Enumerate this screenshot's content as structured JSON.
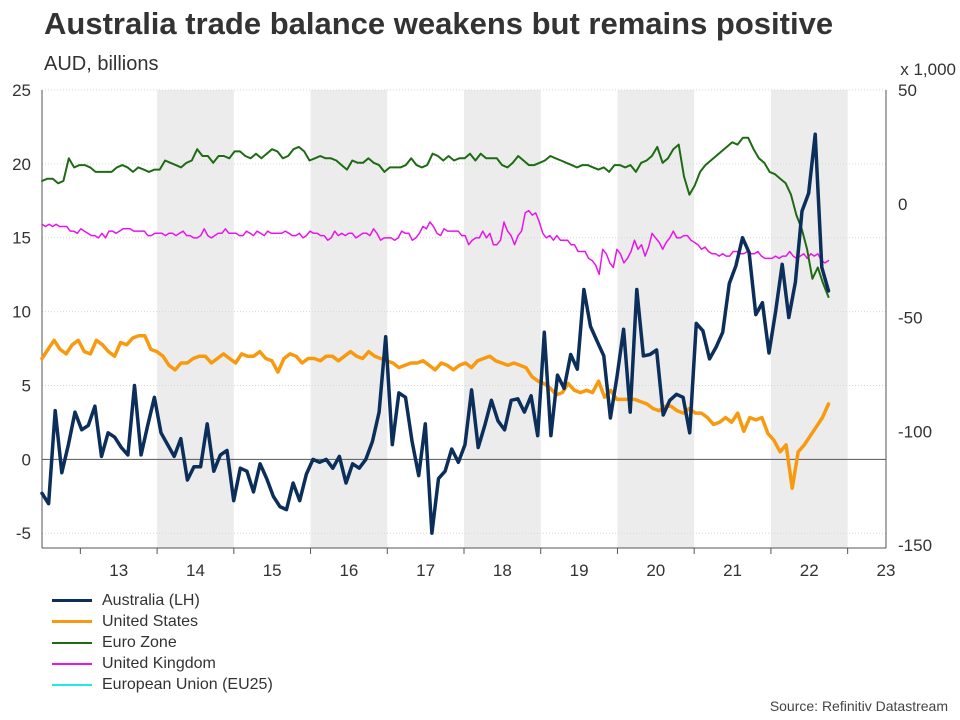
{
  "chart_data": {
    "type": "line",
    "title": "Australia trade balance weakens but remains positive",
    "subtitle": "AUD, billions",
    "right_axis_unit": "x 1,000",
    "source": "Source: Refinitiv Datastream",
    "x_start_year": 2012.5,
    "x_end_year": 2023.5,
    "x_tick_labels": [
      "13",
      "14",
      "15",
      "16",
      "17",
      "18",
      "19",
      "20",
      "21",
      "22",
      "23"
    ],
    "left_axis": {
      "ylim": [
        -6,
        25
      ],
      "ticks": [
        -5,
        0,
        5,
        10,
        15,
        20,
        25
      ]
    },
    "right_axis": {
      "ylim": [
        -151.3,
        50
      ],
      "ticks": [
        -150,
        -100,
        -50,
        0,
        50
      ]
    },
    "shaded_years": [
      [
        2014,
        2015
      ],
      [
        2016,
        2017
      ],
      [
        2018,
        2019
      ],
      [
        2020,
        2021
      ],
      [
        2022,
        2023
      ]
    ],
    "series": [
      {
        "name": "Australia (LH)",
        "axis": "left",
        "color": "#0b2e5b",
        "width": 3.5,
        "start": 2012.5,
        "values": [
          -2.3,
          -3.0,
          3.3,
          -0.9,
          1.0,
          3.2,
          2.0,
          2.3,
          3.6,
          0.2,
          1.8,
          1.5,
          0.8,
          0.3,
          5.0,
          0.3,
          2.3,
          4.2,
          1.8,
          1.0,
          0.2,
          1.4,
          -1.4,
          -0.5,
          -0.5,
          2.4,
          -0.8,
          0.3,
          0.6,
          -2.8,
          -0.6,
          -0.8,
          -2.2,
          -0.3,
          -1.3,
          -2.5,
          -3.2,
          -3.4,
          -1.6,
          -2.8,
          -1.0,
          0.0,
          -0.2,
          0.0,
          -0.6,
          0.2,
          -1.6,
          -0.3,
          -0.6,
          0.0,
          1.2,
          3.2,
          8.3,
          1.0,
          4.5,
          4.2,
          1.2,
          -1.1,
          2.4,
          -5.0,
          -1.3,
          -0.8,
          0.7,
          -0.2,
          1.0,
          4.7,
          0.8,
          2.3,
          4.0,
          2.6,
          2.0,
          4.0,
          4.1,
          3.2,
          4.3,
          1.6,
          8.6,
          1.6,
          5.7,
          4.8,
          7.1,
          6.1,
          11.5,
          9.0,
          8.0,
          7.0,
          2.8,
          5.6,
          8.8,
          3.2,
          11.5,
          7.0,
          7.1,
          7.4,
          3.0,
          4.0,
          4.4,
          4.2,
          1.8,
          9.2,
          8.7,
          6.8,
          7.6,
          8.6,
          11.9,
          13.1,
          15.0,
          14.0,
          9.8,
          10.6,
          7.2,
          10.0,
          13.2,
          9.6,
          12.0,
          16.8,
          18.0,
          22.0,
          13.0,
          11.4
        ]
      },
      {
        "name": "United States",
        "axis": "right",
        "color": "#f79a0f",
        "width": 3.5,
        "start": 2012.5,
        "values": [
          -68,
          -64,
          -60,
          -64,
          -66,
          -62,
          -60,
          -65,
          -66,
          -60,
          -62,
          -65,
          -67,
          -61,
          -62,
          -59,
          -58,
          -58,
          -64,
          -65,
          -67,
          -71,
          -73,
          -70,
          -70,
          -68,
          -67,
          -67,
          -70,
          -68,
          -66,
          -68,
          -70,
          -66,
          -67,
          -67,
          -65,
          -68,
          -69,
          -74,
          -68,
          -66,
          -67,
          -70,
          -68,
          -68,
          -69,
          -67,
          -67,
          -69,
          -67,
          -65,
          -67,
          -68,
          -65,
          -67,
          -68,
          -69,
          -70,
          -72,
          -71,
          -70,
          -70,
          -69,
          -71,
          -73,
          -70,
          -71,
          -73,
          -71,
          -70,
          -72,
          -69,
          -68,
          -67,
          -69,
          -70,
          -71,
          -70,
          -71,
          -72,
          -76,
          -78,
          -79,
          -81,
          -84,
          -83,
          -79,
          -82,
          -83,
          -82,
          -83,
          -78,
          -85,
          -82,
          -86,
          -86,
          -86,
          -86,
          -87,
          -88,
          -90,
          -91,
          -89,
          -89,
          -91,
          -92,
          -90,
          -92,
          -92,
          -94,
          -97,
          -96,
          -94,
          -96,
          -92,
          -100,
          -94,
          -95,
          -94,
          -101,
          -104,
          -109,
          -106,
          -125,
          -109,
          -106,
          -102,
          -98,
          -94,
          -88
        ]
      },
      {
        "name": "Euro Zone",
        "axis": "right",
        "color": "#1e6b14",
        "width": 2,
        "start": 2012.5,
        "values": [
          10,
          11,
          11,
          9,
          10,
          20,
          16,
          17,
          17,
          16,
          14,
          14,
          14,
          14,
          16,
          17,
          16,
          14,
          16,
          15,
          14,
          15,
          15,
          19,
          18,
          17,
          16,
          18,
          19,
          24,
          21,
          21,
          18,
          21,
          21,
          20,
          23,
          23,
          21,
          20,
          22,
          20,
          22,
          24,
          23,
          20,
          21,
          24,
          25,
          23,
          19,
          20,
          21,
          20,
          20,
          19,
          17,
          15,
          19,
          18,
          18,
          20,
          18,
          17,
          14,
          16,
          16,
          16,
          17,
          20,
          17,
          16,
          17,
          22,
          21,
          19,
          21,
          19,
          20,
          20,
          22,
          19,
          22,
          20,
          20,
          20,
          17,
          16,
          18,
          21,
          19,
          17,
          17,
          18,
          19,
          21,
          20,
          19,
          18,
          17,
          16,
          17,
          17,
          16,
          15,
          16,
          14,
          17,
          17,
          16,
          17,
          14,
          18,
          19,
          21,
          25,
          18,
          20,
          24,
          26,
          12,
          4,
          8,
          14,
          17,
          19,
          21,
          23,
          25,
          27,
          26,
          29,
          29,
          24,
          20,
          18,
          14,
          13,
          11,
          9,
          4,
          -5,
          -11,
          -20,
          -33,
          -28,
          -35,
          -41
        ]
      },
      {
        "name": "United Kingdom",
        "axis": "right",
        "color": "#e815e8",
        "width": 1.5,
        "start": 2012.5,
        "values": [
          -9,
          -10,
          -9,
          -10,
          -9,
          -10,
          -10,
          -10,
          -12,
          -12,
          -13,
          -11,
          -12,
          -13,
          -14,
          -14,
          -15,
          -13,
          -15,
          -12,
          -12,
          -13,
          -12,
          -11,
          -11,
          -11,
          -12,
          -12,
          -12,
          -12,
          -14,
          -14,
          -13,
          -13,
          -13,
          -14,
          -13,
          -13,
          -14,
          -13,
          -12,
          -14,
          -14,
          -15,
          -15,
          -14,
          -11,
          -14,
          -15,
          -14,
          -13,
          -13,
          -11,
          -13,
          -13,
          -13,
          -14,
          -14,
          -12,
          -13,
          -14,
          -12,
          -13,
          -14,
          -12,
          -13,
          -13,
          -13,
          -13,
          -12,
          -13,
          -14,
          -14,
          -13,
          -15,
          -14,
          -12,
          -13,
          -13,
          -14,
          -14,
          -16,
          -15,
          -12,
          -14,
          -13,
          -14,
          -13,
          -13,
          -15,
          -14,
          -13,
          -13,
          -14,
          -11,
          -13,
          -16,
          -15,
          -15,
          -15,
          -16,
          -15,
          -12,
          -13,
          -13,
          -16,
          -15,
          -13,
          -10,
          -11,
          -8,
          -10,
          -13,
          -14,
          -11,
          -12,
          -12,
          -12,
          -12,
          -14,
          -14,
          -18,
          -16,
          -15,
          -15,
          -12,
          -15,
          -13,
          -18,
          -18,
          -16,
          -8,
          -12,
          -14,
          -18,
          -14,
          -12,
          -4,
          -3,
          -5,
          -4,
          -8,
          -13,
          -15,
          -14,
          -16,
          -14,
          -16,
          -16,
          -16,
          -18,
          -18,
          -21,
          -21,
          -21,
          -24,
          -25,
          -27,
          -31,
          -20,
          -22,
          -26,
          -28,
          -20,
          -22,
          -26,
          -24,
          -21,
          -16,
          -20,
          -18,
          -23,
          -19,
          -13,
          -15,
          -17,
          -20,
          -17,
          -15,
          -12,
          -15,
          -15,
          -14,
          -14,
          -16,
          -17,
          -18,
          -20,
          -19,
          -21,
          -22,
          -22,
          -23,
          -22,
          -23,
          -23,
          -21,
          -21,
          -22,
          -22,
          -21,
          -22,
          -22,
          -21,
          -23,
          -24,
          -24,
          -24,
          -23,
          -24,
          -23,
          -23,
          -21,
          -23,
          -24,
          -23,
          -22,
          -24,
          -22,
          -23,
          -22,
          -25,
          -26,
          -25
        ]
      },
      {
        "name": "European Union (EU25)",
        "axis": "right",
        "color": "#22e8e8",
        "width": 1.5,
        "start": 2012.5,
        "values": []
      }
    ]
  }
}
